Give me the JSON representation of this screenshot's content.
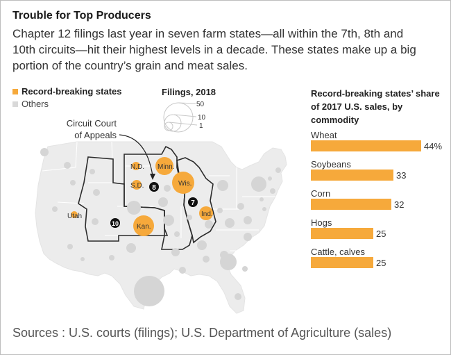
{
  "title": "Trouble for Top Producers",
  "subtitle": "Chapter 12 filings last year in seven farm states—all within the 7th, 8th and 10th circuits—hit their highest levels in a decade. These states make up a big portion of the country’s grain and meat sales.",
  "legend": {
    "record_label": "Record-breaking states",
    "others_label": "Others",
    "record_color": "#f6a93b",
    "others_color": "#d9d9d9"
  },
  "filings_legend": {
    "title": "Filings, 2018",
    "sizes": [
      "50",
      "10",
      "1"
    ]
  },
  "map": {
    "annotation": [
      "Circuit Court",
      "of Appeals"
    ],
    "circuits": [
      "8",
      "7",
      "10"
    ],
    "record_states": [
      "N.D.",
      "Minn.",
      "S.D.",
      "Wis.",
      "Ind.",
      "Utah",
      "Kan."
    ]
  },
  "chart_data": {
    "type": "bar",
    "title": "Record-breaking states’ share of 2017 U.S. sales, by commodity",
    "categories": [
      "Wheat",
      "Soybeans",
      "Corn",
      "Hogs",
      "Cattle, calves"
    ],
    "values": [
      44,
      33,
      32,
      25,
      25
    ],
    "value_labels": [
      "44%",
      "33",
      "32",
      "25",
      "25"
    ],
    "xlim": [
      0,
      44
    ],
    "bar_color": "#f6a93b"
  },
  "sources": "Sources : U.S. courts (filings); U.S. Department of Agriculture (sales)"
}
